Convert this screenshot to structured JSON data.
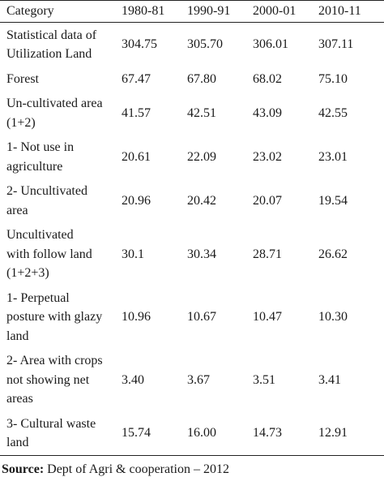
{
  "table": {
    "header": [
      "Category",
      "1980-81",
      "1990-91",
      "2000-01",
      "2010-11"
    ],
    "rows": [
      {
        "category": "Statistical data of\nUtilization Land",
        "values": [
          "304.75",
          "305.70",
          "306.01",
          "307.11"
        ]
      },
      {
        "category": "Forest",
        "values": [
          "67.47",
          "67.80",
          "68.02",
          "75.10"
        ]
      },
      {
        "category": "Un-cultivated area\n(1+2)",
        "values": [
          "41.57",
          "42.51",
          "43.09",
          "42.55"
        ]
      },
      {
        "category": "1- Not use in\nagriculture",
        "values": [
          "20.61",
          "22.09",
          "23.02",
          "23.01"
        ]
      },
      {
        "category": "2- Uncultivated\narea",
        "values": [
          "20.96",
          "20.42",
          "20.07",
          "19.54"
        ]
      },
      {
        "category": "Uncultivated\nwith follow land\n(1+2+3)",
        "values": [
          "30.1",
          "30.34",
          "28.71",
          "26.62"
        ]
      },
      {
        "category": "1- Perpetual\nposture with glazy\nland",
        "values": [
          "10.96",
          "10.67",
          "10.47",
          "10.30"
        ]
      },
      {
        "category": "2- Area with crops\nnot showing net\nareas",
        "values": [
          "3.40",
          "3.67",
          "3.51",
          "3.41"
        ]
      },
      {
        "category": "3- Cultural waste\nland",
        "values": [
          "15.74",
          "16.00",
          "14.73",
          "12.91"
        ]
      }
    ]
  },
  "source": {
    "label": "Source:",
    "text": "Dept of Agri & cooperation – 2012"
  }
}
